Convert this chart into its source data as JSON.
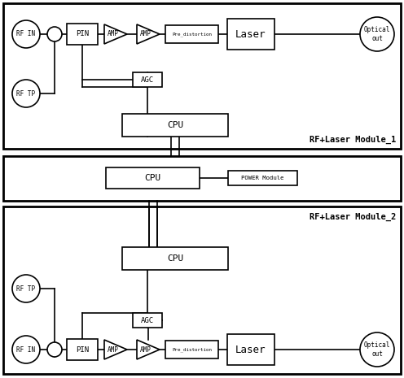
{
  "bg_color": "#ffffff",
  "border_color": "#000000",
  "module1_label": "RF+Laser Module_1",
  "module2_label": "RF+Laser Module_2",
  "cpu_mid_label": "CPU",
  "power_module_label": "POWER Module",
  "rf_in_label": "RF IN",
  "rf_tp_label": "RF TP",
  "pin_label": "PIN",
  "amp_label": "AMP",
  "amp2_label": "AMP",
  "pre_dist_label": "Pre_distortion",
  "laser_label": "Laser",
  "optical_label": "Optical\nout",
  "agc_label": "AGC",
  "cpu_label": "CPU"
}
